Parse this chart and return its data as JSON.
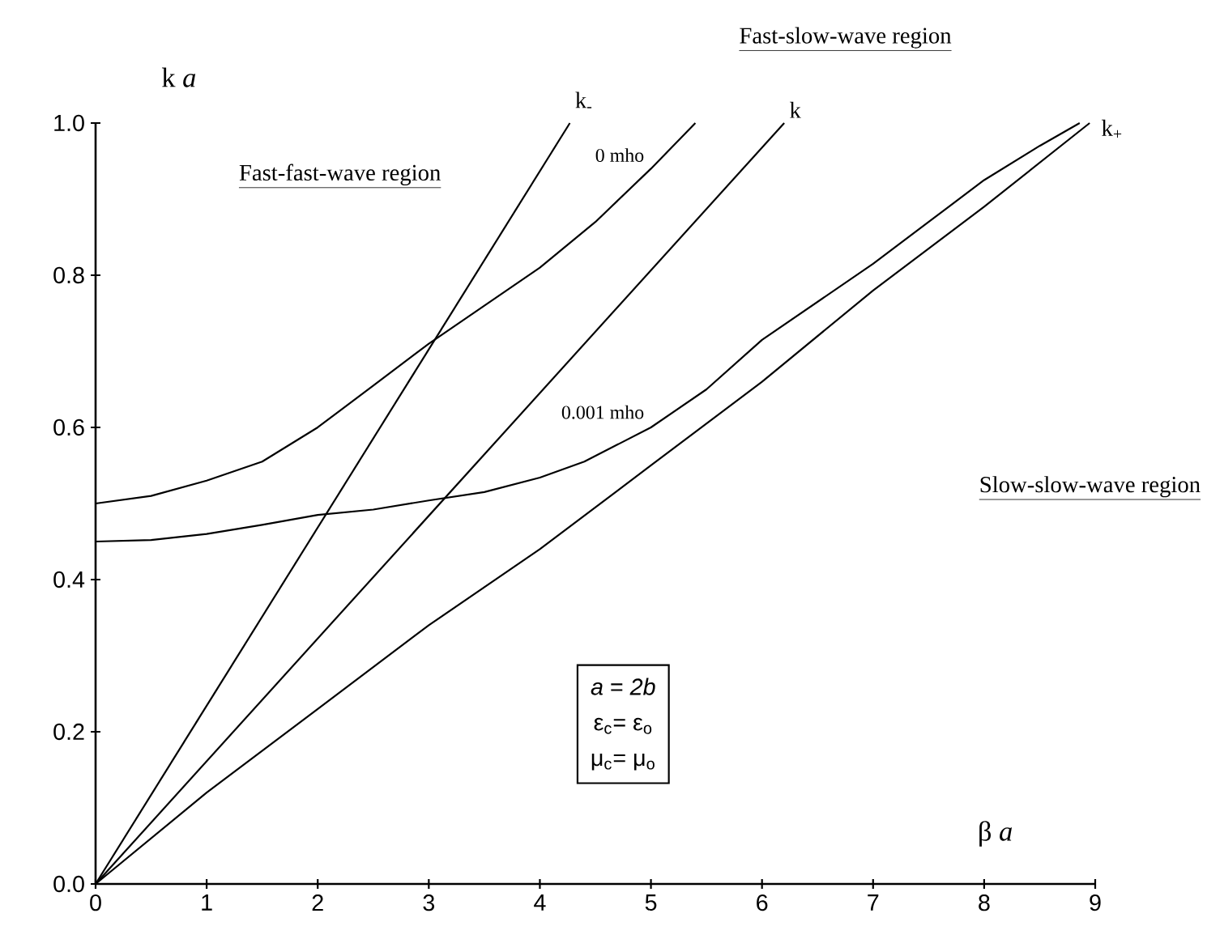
{
  "chart_data": {
    "type": "line",
    "xlabel": "β *a*",
    "ylabel": "k *a*",
    "xlim": [
      0,
      9
    ],
    "ylim": [
      0,
      1
    ],
    "xticks": [
      0,
      1,
      2,
      3,
      4,
      5,
      6,
      7,
      8,
      9
    ],
    "yticks": [
      {
        "value": 0,
        "label": "0.0"
      },
      {
        "value": 0.2,
        "label": "0.2"
      },
      {
        "value": 0.4,
        "label": "0.4"
      },
      {
        "value": 0.6,
        "label": "0.6"
      },
      {
        "value": 0.8,
        "label": "0.8"
      },
      {
        "value": 1,
        "label": "1.0"
      }
    ],
    "line_style": "solid",
    "legend": false,
    "series": [
      {
        "name": "k$_{-}$",
        "color": "#000000",
        "x": [
          0,
          4.27
        ],
        "values": [
          0,
          1.0
        ]
      },
      {
        "name": "k",
        "color": "#000000",
        "x": [
          0,
          6.2
        ],
        "values": [
          0,
          1.0
        ]
      },
      {
        "name": "k$_{+}$",
        "color": "#000000",
        "x": [
          0,
          1,
          2,
          3,
          4,
          5,
          6,
          7,
          8,
          8.95
        ],
        "values": [
          0,
          0.12,
          0.23,
          0.34,
          0.44,
          0.55,
          0.66,
          0.78,
          0.89,
          1.0
        ]
      },
      {
        "name": "0 mho",
        "color": "#000000",
        "x": [
          0,
          0.5,
          1,
          1.5,
          2,
          2.5,
          3,
          3.5,
          4,
          4.5,
          5,
          5.4
        ],
        "values": [
          0.5,
          0.51,
          0.53,
          0.555,
          0.6,
          0.655,
          0.71,
          0.76,
          0.81,
          0.87,
          0.94,
          1.0
        ]
      },
      {
        "name": "0.001 mho",
        "color": "#000000",
        "x": [
          0,
          0.5,
          1,
          1.5,
          2,
          2.5,
          3,
          3.5,
          4,
          4.4,
          5,
          5.5,
          6,
          6.5,
          7,
          7.5,
          8,
          8.5,
          8.86
        ],
        "values": [
          0.45,
          0.452,
          0.46,
          0.472,
          0.485,
          0.492,
          0.504,
          0.515,
          0.534,
          0.555,
          0.6,
          0.65,
          0.715,
          0.765,
          0.815,
          0.87,
          0.925,
          0.97,
          1.0
        ]
      }
    ],
    "annotations": [
      "Fast-fast-wave region",
      "Fast-slow-wave region",
      "Slow-slow-wave region",
      "*a* = *2b*",
      "ε$_{c}$= ε$_{o}$",
      "μ$_{c}$= μ$_{o}$"
    ]
  }
}
